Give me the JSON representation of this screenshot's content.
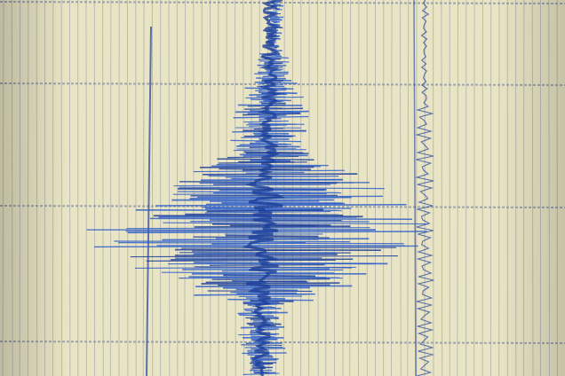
{
  "image": {
    "subject": "seismograph-recording",
    "colors": {
      "paper": "#e9e4c4",
      "paper_shadow": "#cfc9a6",
      "grid_line": "#8a93a6",
      "trace": "#2f5fc8",
      "trace_dark": "#1c3f9a"
    }
  }
}
